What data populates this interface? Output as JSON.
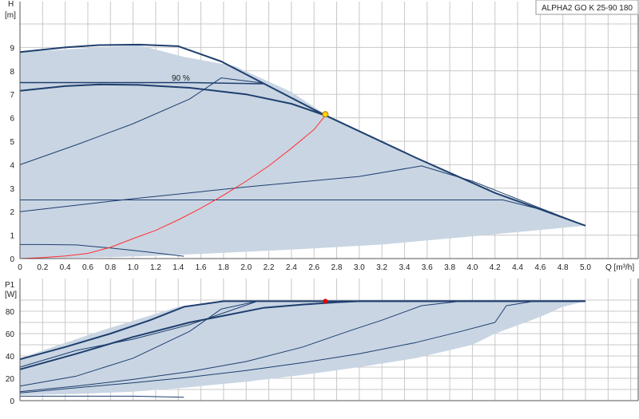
{
  "title_box": "ALPHA2 GO K 25-90 180",
  "colors": {
    "curve": "#1e3f6e",
    "area": "#c9d5e3",
    "grid": "#c8c8c8",
    "system": "#ff3030",
    "duty_point": "#ffd700"
  },
  "chart_data": [
    {
      "type": "line",
      "name": "pump-curve",
      "ylabel": "H",
      "yunit": "[m]",
      "xlabel": "Q [m³/h]",
      "xlim": [
        0,
        5.2
      ],
      "ylim": [
        0,
        10
      ],
      "xticks": [
        0,
        0.2,
        0.4,
        0.6,
        0.8,
        1.0,
        1.2,
        1.4,
        1.6,
        1.8,
        2.0,
        2.2,
        2.4,
        2.6,
        2.8,
        3.0,
        3.2,
        3.4,
        3.6,
        3.8,
        4.0,
        4.2,
        4.4,
        4.6,
        4.8,
        5.0
      ],
      "xtick_labels": [
        "0",
        "0.2",
        "0.4",
        "0.6",
        "0.8",
        "1.0",
        "1.2",
        "1.4",
        "1.6",
        "1.8",
        "2.0",
        "2.2",
        "2.4",
        "2.6",
        "2.8",
        "3.0",
        "3.2",
        "3.4",
        "3.6",
        "3.8",
        "4.0",
        "4.2",
        "4.4",
        "4.6",
        "4.8",
        "5.0"
      ],
      "yticks": [
        0,
        1,
        2,
        3,
        4,
        5,
        6,
        7,
        8,
        9
      ],
      "ytick_labels": [
        "0",
        "1",
        "2",
        "3",
        "4",
        "5",
        "6",
        "7",
        "8",
        "9"
      ],
      "grid": true,
      "annotation": "90 %",
      "area": [
        [
          0,
          8.8
        ],
        [
          1.05,
          9.1
        ],
        [
          1.45,
          8.6
        ],
        [
          1.9,
          8.2
        ],
        [
          2.4,
          7.1
        ],
        [
          2.7,
          6.15
        ],
        [
          3.5,
          4.3
        ],
        [
          4.2,
          2.8
        ],
        [
          5.0,
          1.4
        ],
        [
          4.0,
          0.95
        ],
        [
          3.2,
          0.6
        ],
        [
          2.4,
          0.38
        ],
        [
          1.6,
          0.2
        ],
        [
          1.2,
          0.12
        ],
        [
          0.8,
          0.06
        ],
        [
          0,
          0
        ]
      ],
      "series": [
        {
          "points": [
            [
              0,
              8.8
            ],
            [
              0.4,
              9.0
            ],
            [
              0.7,
              9.1
            ],
            [
              1.05,
              9.12
            ],
            [
              1.4,
              9.05
            ],
            [
              1.78,
              8.4
            ],
            [
              2.1,
              7.6
            ],
            [
              2.68,
              6.15
            ],
            [
              3.5,
              4.3
            ],
            [
              4.2,
              2.8
            ],
            [
              5.0,
              1.4
            ]
          ],
          "width": 2
        },
        {
          "points": [
            [
              0,
              7.5
            ],
            [
              0.4,
              7.5
            ],
            [
              0.9,
              7.5
            ],
            [
              1.5,
              7.5
            ],
            [
              2.15,
              7.45
            ]
          ],
          "width": 1.5
        },
        {
          "points": [
            [
              0,
              7.15
            ],
            [
              0.4,
              7.35
            ],
            [
              0.7,
              7.42
            ],
            [
              1.05,
              7.4
            ],
            [
              1.5,
              7.28
            ],
            [
              2.0,
              7.0
            ],
            [
              2.4,
              6.6
            ],
            [
              2.7,
              6.1
            ]
          ],
          "width": 2
        },
        {
          "points": [
            [
              0,
              4.0
            ],
            [
              0.5,
              4.85
            ],
            [
              1.0,
              5.75
            ],
            [
              1.5,
              6.8
            ],
            [
              1.78,
              7.7
            ],
            [
              2.15,
              7.48
            ]
          ],
          "width": 1
        },
        {
          "points": [
            [
              0,
              2.0
            ],
            [
              1.0,
              2.55
            ],
            [
              2.0,
              3.05
            ],
            [
              3.0,
              3.5
            ],
            [
              3.55,
              3.95
            ],
            [
              4.0,
              3.3
            ],
            [
              4.6,
              2.15
            ],
            [
              5.0,
              1.4
            ]
          ],
          "width": 1
        },
        {
          "points": [
            [
              0,
              2.5
            ],
            [
              1.0,
              2.5
            ],
            [
              2.0,
              2.5
            ],
            [
              3.0,
              2.5
            ],
            [
              4.27,
              2.5
            ],
            [
              4.6,
              2.1
            ]
          ],
          "width": 1
        },
        {
          "points": [
            [
              0,
              0.6
            ],
            [
              0.2,
              0.6
            ],
            [
              0.5,
              0.58
            ],
            [
              0.8,
              0.45
            ],
            [
              1.1,
              0.3
            ],
            [
              1.45,
              0.1
            ]
          ],
          "width": 1
        }
      ],
      "system_curve": [
        [
          0,
          0
        ],
        [
          0.2,
          0.04
        ],
        [
          0.4,
          0.11
        ],
        [
          0.6,
          0.22
        ],
        [
          0.8,
          0.48
        ],
        [
          1.0,
          0.85
        ],
        [
          1.2,
          1.2
        ],
        [
          1.4,
          1.65
        ],
        [
          1.6,
          2.15
        ],
        [
          1.8,
          2.7
        ],
        [
          2.0,
          3.3
        ],
        [
          2.2,
          3.95
        ],
        [
          2.4,
          4.7
        ],
        [
          2.6,
          5.5
        ],
        [
          2.7,
          6.1
        ]
      ],
      "duty_point": [
        2.7,
        6.15
      ]
    },
    {
      "type": "line",
      "name": "power-curve",
      "ylabel": "P1",
      "yunit": "[W]",
      "xlim": [
        0,
        5.2
      ],
      "ylim": [
        0,
        95
      ],
      "yticks": [
        0,
        20,
        40,
        60,
        80
      ],
      "ytick_labels": [
        "0",
        "20",
        "40",
        "60",
        "80"
      ],
      "grid": true,
      "area": [
        [
          0,
          38
        ],
        [
          0.7,
          62
        ],
        [
          1.4,
          84
        ],
        [
          1.8,
          89
        ],
        [
          2.1,
          89
        ],
        [
          3.0,
          89
        ],
        [
          4.0,
          89
        ],
        [
          5.0,
          89
        ],
        [
          4.8,
          84
        ],
        [
          4.6,
          75
        ],
        [
          4.2,
          60
        ],
        [
          4.0,
          50
        ],
        [
          3.5,
          38
        ],
        [
          3.0,
          30
        ],
        [
          2.5,
          23
        ],
        [
          2.0,
          17
        ],
        [
          1.5,
          12
        ],
        [
          1.0,
          8
        ],
        [
          0.5,
          6
        ],
        [
          0,
          5
        ]
      ],
      "series": [
        {
          "points": [
            [
              0,
              37
            ],
            [
              0.4,
              48
            ],
            [
              0.8,
              60
            ],
            [
              1.15,
              72
            ],
            [
              1.45,
              84
            ],
            [
              1.8,
              89
            ],
            [
              2.1,
              89
            ],
            [
              3.0,
              89
            ],
            [
              4.0,
              89
            ],
            [
              5.0,
              89
            ]
          ],
          "width": 2
        },
        {
          "points": [
            [
              0,
              28
            ],
            [
              0.5,
              42
            ],
            [
              1.0,
              57
            ],
            [
              1.5,
              70
            ],
            [
              1.8,
              76
            ],
            [
              2.15,
              83
            ],
            [
              2.5,
              86
            ],
            [
              2.8,
              88
            ],
            [
              3.0,
              89
            ],
            [
              4.0,
              89
            ],
            [
              5.0,
              89
            ]
          ],
          "width": 2
        },
        {
          "points": [
            [
              0,
              30
            ],
            [
              0.5,
              45
            ],
            [
              1.0,
              55
            ],
            [
              1.5,
              68
            ],
            [
              2.1,
              89
            ]
          ],
          "width": 1
        },
        {
          "points": [
            [
              0,
              13
            ],
            [
              0.5,
              22
            ],
            [
              1.0,
              38
            ],
            [
              1.5,
              62
            ],
            [
              1.78,
              82
            ],
            [
              2.1,
              89
            ]
          ],
          "width": 1
        },
        {
          "points": [
            [
              0,
              8
            ],
            [
              0.5,
              13
            ],
            [
              1.0,
              19
            ],
            [
              1.5,
              26
            ],
            [
              2.0,
              35
            ],
            [
              2.5,
              48
            ],
            [
              2.9,
              62
            ],
            [
              3.2,
              72
            ],
            [
              3.55,
              85
            ],
            [
              3.9,
              89
            ]
          ],
          "width": 1
        },
        {
          "points": [
            [
              0,
              7
            ],
            [
              1.0,
              16
            ],
            [
              1.5,
              21
            ],
            [
              2.0,
              27
            ],
            [
              2.5,
              34
            ],
            [
              3.0,
              42
            ],
            [
              3.5,
              52
            ],
            [
              3.9,
              62
            ],
            [
              4.2,
              70
            ],
            [
              4.3,
              85
            ],
            [
              4.55,
              89
            ],
            [
              5.0,
              89
            ]
          ],
          "width": 1
        },
        {
          "points": [
            [
              0,
              4
            ],
            [
              0.5,
              4
            ],
            [
              1.0,
              4
            ],
            [
              1.45,
              3
            ]
          ],
          "width": 1
        }
      ],
      "duty_point": [
        2.7,
        89
      ]
    }
  ]
}
